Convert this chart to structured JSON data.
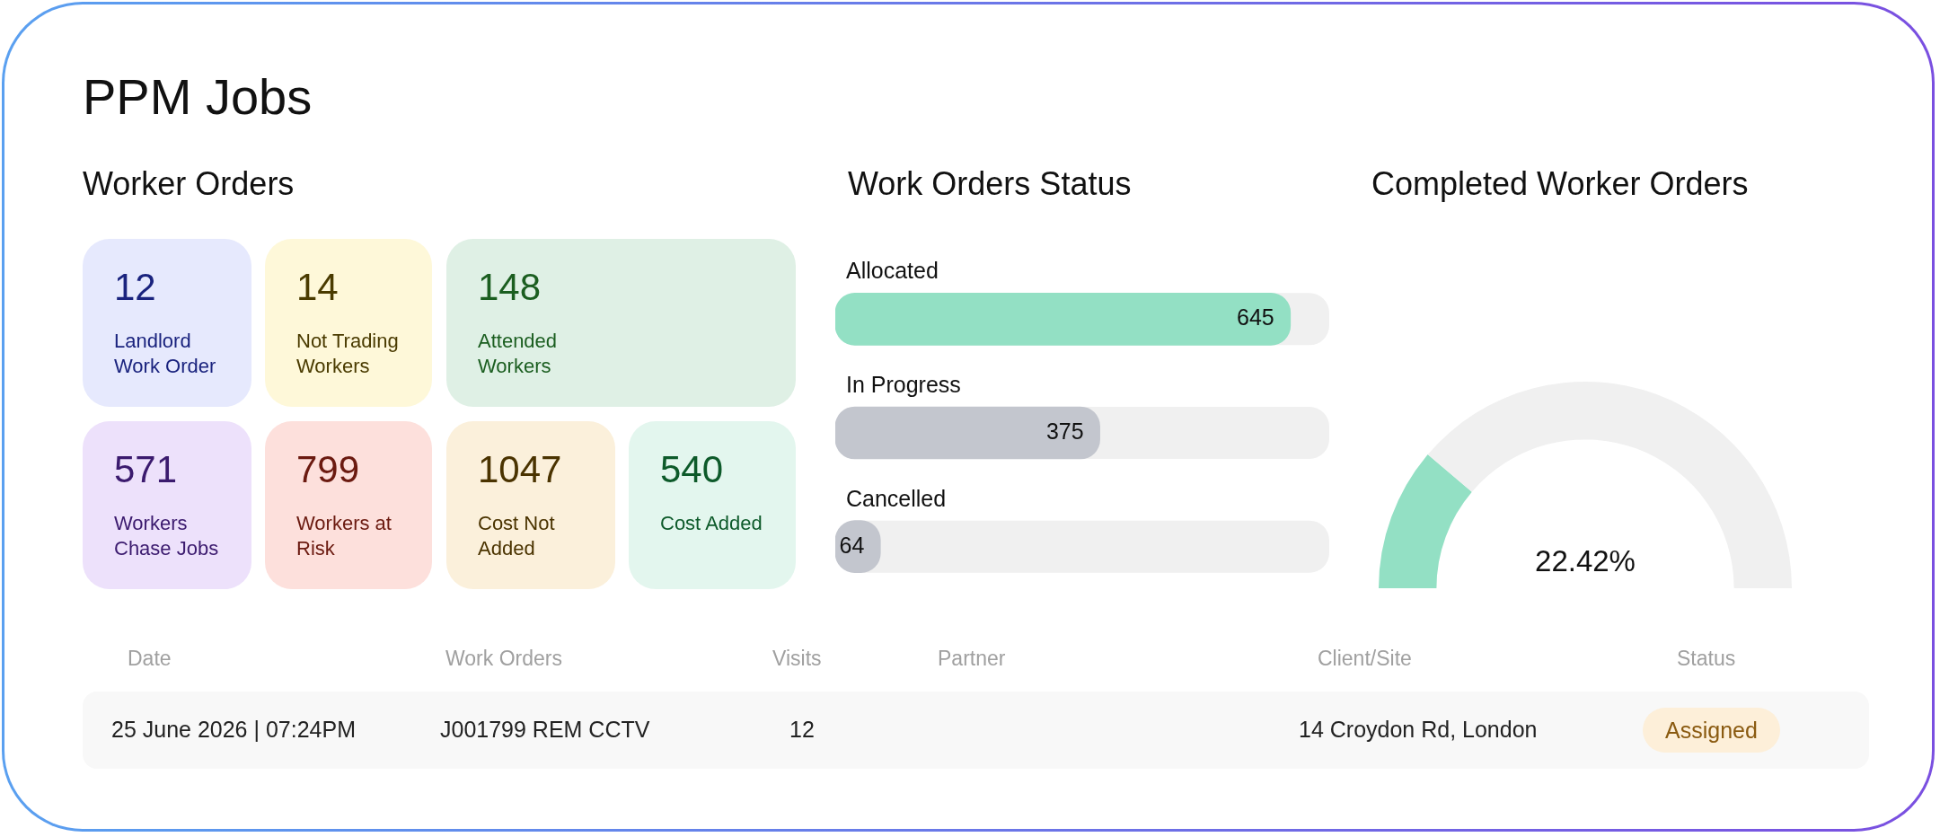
{
  "chart_data": [
    {
      "type": "other",
      "title": "PPM Jobs",
      "subtitle": "Worker Orders",
      "annotations": [
        "12",
        "Landlord Work Order",
        "14",
        "Not Trading Workers",
        "148",
        "Attended Workers",
        "571",
        "Workers Chase Jobs",
        "799",
        "Workers at Risk",
        "1047",
        "Cost Not Added",
        "540",
        "Cost Added"
      ],
      "colors": [
        "#e6e9fd",
        "#fef8d9",
        "#dff0e5",
        "#ede1fb",
        "#fde0dc",
        "#fbf0db",
        "#e3f6ee"
      ]
    },
    {
      "type": "bar",
      "orientation": "horizontal",
      "title": "Work Orders Status",
      "categories": [
        "Allocated",
        "In Progress",
        "Cancelled"
      ],
      "values": [
        645,
        375,
        64
      ],
      "colors": [
        "#93e0c4",
        "#c3c6ce",
        "#c3c6ce"
      ],
      "data_labels": true
    },
    {
      "type": "donut",
      "title": "Completed Worker Orders",
      "categories": [
        null,
        null
      ],
      "values": [
        22.42,
        77.58
      ],
      "colors": [
        "#93e0c4",
        "#f0f0f0"
      ],
      "annotations": [
        "22.42%"
      ]
    },
    {
      "type": "other",
      "categories": [
        "Date",
        "Work Orders",
        "Visits",
        "Partner",
        "Client/Site",
        "Status"
      ],
      "annotations": [
        "25 June 2026 | 07:24PM",
        "J001799 REM CCTV",
        "12",
        null,
        "14 Croydon Rd, London",
        "Assigned"
      ]
    }
  ]
}
